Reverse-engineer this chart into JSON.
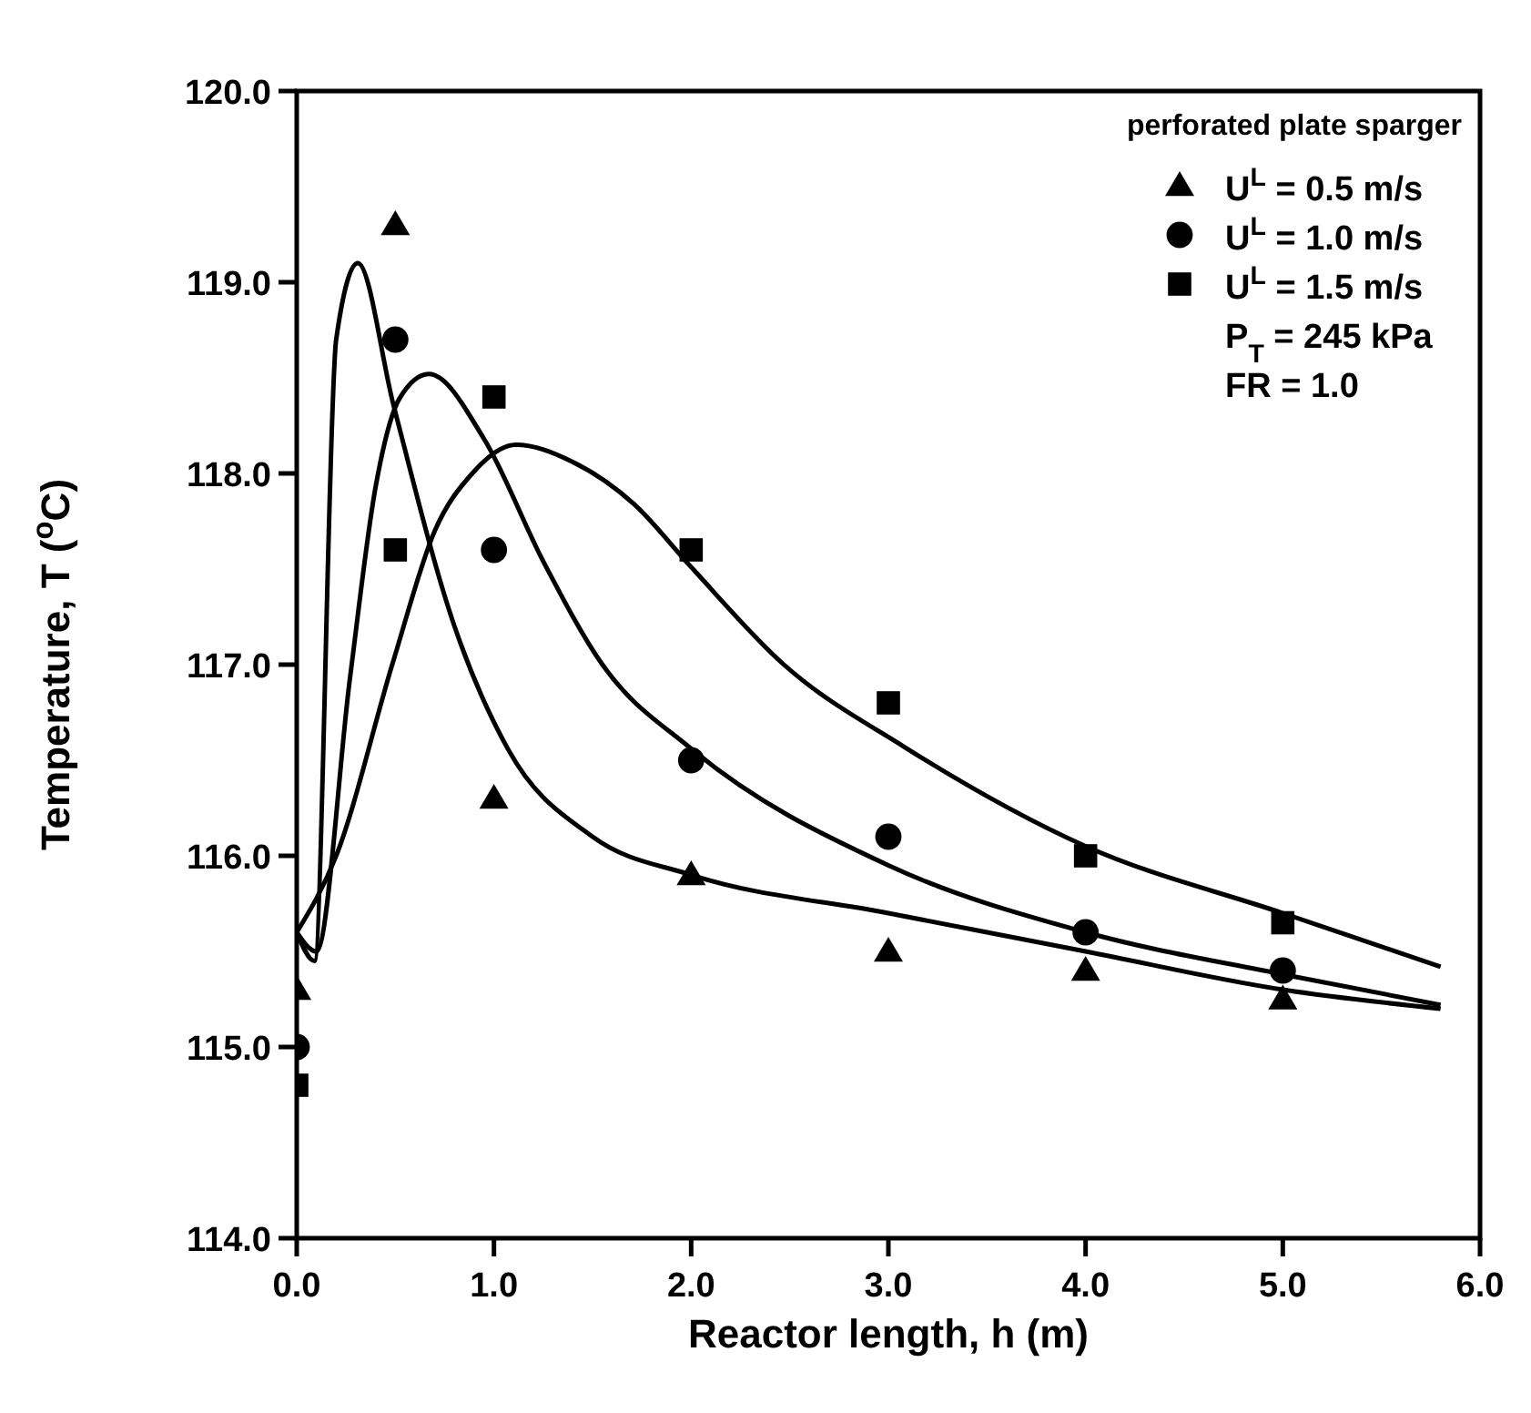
{
  "chart_data": {
    "type": "scatter",
    "xlabel": "Reactor length, h (m)",
    "ylabel": "Temperature, T ($^{o}$C)",
    "legend_title": "perforated plate sparger",
    "legend": "top right",
    "grid": false,
    "xlim": [
      0,
      6
    ],
    "xticks": [
      {
        "value": 0,
        "label": "0.0"
      },
      {
        "value": 1,
        "label": "1.0"
      },
      {
        "value": 2,
        "label": "2.0"
      },
      {
        "value": 3,
        "label": "3.0"
      },
      {
        "value": 4,
        "label": "4.0"
      },
      {
        "value": 5,
        "label": "5.0"
      },
      {
        "value": 6,
        "label": "6.0"
      }
    ],
    "ylim": [
      114,
      120
    ],
    "yticks": [
      {
        "value": 114,
        "label": "114.0"
      },
      {
        "value": 115,
        "label": "115.0"
      },
      {
        "value": 116,
        "label": "116.0"
      },
      {
        "value": 117,
        "label": "117.0"
      },
      {
        "value": 118,
        "label": "118.0"
      },
      {
        "value": 119,
        "label": "119.0"
      },
      {
        "value": 120,
        "label": "120.0"
      }
    ],
    "annotations": [
      "P$_{T}$ = 245 kPa",
      "FR = 1.0"
    ],
    "series": [
      {
        "name": "U$^{L}$ = 0.5 m/s",
        "marker": "triangle",
        "color": "#000000",
        "x": [
          0,
          0.5,
          1,
          2,
          3,
          4,
          5
        ],
        "values": [
          115.3,
          119.3,
          116.3,
          115.9,
          115.5,
          115.4,
          115.25
        ]
      },
      {
        "name": "U$^{L}$ = 1.0 m/s",
        "marker": "circle",
        "color": "#000000",
        "x": [
          0,
          0.5,
          1,
          2,
          3,
          4,
          5
        ],
        "values": [
          115.0,
          118.7,
          117.6,
          116.5,
          116.1,
          115.6,
          115.4
        ]
      },
      {
        "name": "U$^{L}$ = 1.5 m/s",
        "marker": "square",
        "color": "#000000",
        "x": [
          0,
          0.5,
          1,
          2,
          3,
          4,
          5
        ],
        "values": [
          114.8,
          117.6,
          118.4,
          117.6,
          116.8,
          116.0,
          115.65
        ]
      },
      {
        "type": "line",
        "marker": "none",
        "color": "#000000",
        "x": [
          0,
          0.09,
          0.2,
          0.31,
          0.49,
          0.8,
          1.07,
          1.5,
          2,
          3,
          4,
          5,
          5.8
        ],
        "values": [
          115.6,
          115.45,
          118.7,
          119.1,
          118.36,
          117.2,
          116.56,
          116.1,
          115.9,
          115.7,
          115.5,
          115.3,
          115.2
        ]
      },
      {
        "type": "line",
        "marker": "none",
        "color": "#000000",
        "x": [
          0,
          0.1,
          0.27,
          0.4,
          0.52,
          0.67,
          0.95,
          1.25,
          1.55,
          2,
          3,
          4,
          5,
          5.8
        ],
        "values": [
          115.6,
          115.5,
          116.93,
          117.93,
          118.39,
          118.52,
          118.18,
          117.54,
          117.0,
          116.56,
          115.95,
          115.6,
          115.38,
          115.22
        ]
      },
      {
        "type": "line",
        "marker": "none",
        "color": "#000000",
        "x": [
          0,
          0.2,
          0.49,
          0.7,
          0.89,
          1.11,
          1.4,
          1.71,
          2,
          2.47,
          3.08,
          4,
          5,
          5.8
        ],
        "values": [
          115.6,
          116.0,
          117.02,
          117.7,
          118.0,
          118.15,
          118.06,
          117.84,
          117.51,
          117.0,
          116.57,
          116.05,
          115.7,
          115.42
        ]
      }
    ]
  }
}
